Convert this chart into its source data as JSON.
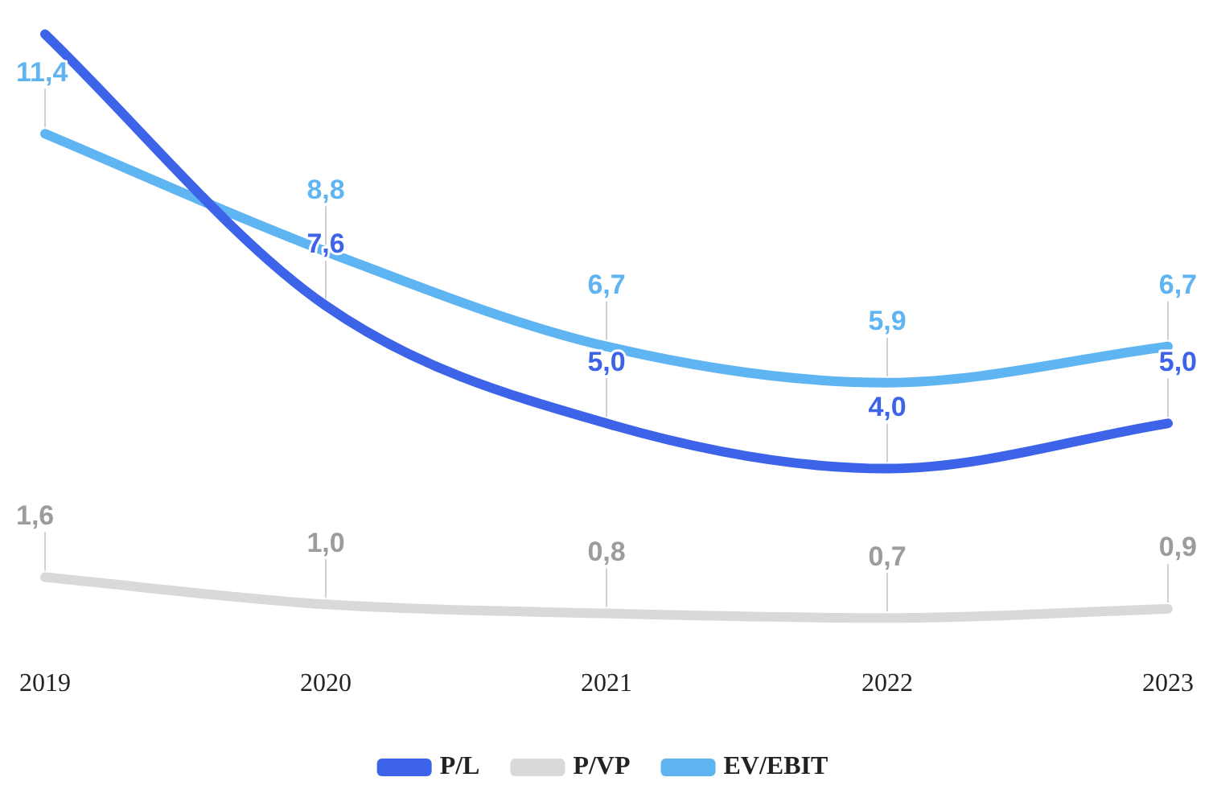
{
  "chart_data": {
    "type": "line",
    "categories": [
      "2019",
      "2020",
      "2021",
      "2022",
      "2023"
    ],
    "series": [
      {
        "name": "P/L",
        "color": "#3d64e8",
        "values": [
          13.6,
          7.6,
          5.0,
          4.0,
          5.0
        ],
        "value_labels": [
          null,
          "7,6",
          "5,0",
          "4,0",
          "5,0"
        ]
      },
      {
        "name": "P/VP",
        "color": "#d9d9d9",
        "values": [
          1.6,
          1.0,
          0.8,
          0.7,
          0.9
        ],
        "value_labels": [
          "1,6",
          "1,0",
          "0,8",
          "0,7",
          "0,9"
        ]
      },
      {
        "name": "EV/EBIT",
        "color": "#5fb4f2",
        "values": [
          11.4,
          8.8,
          6.7,
          5.9,
          6.7
        ],
        "value_labels": [
          "11,4",
          "8,8",
          "6,7",
          "5,9",
          "6,7"
        ]
      }
    ],
    "grid": false,
    "legend": "bottom",
    "marker": "none",
    "line_style": "solid"
  }
}
